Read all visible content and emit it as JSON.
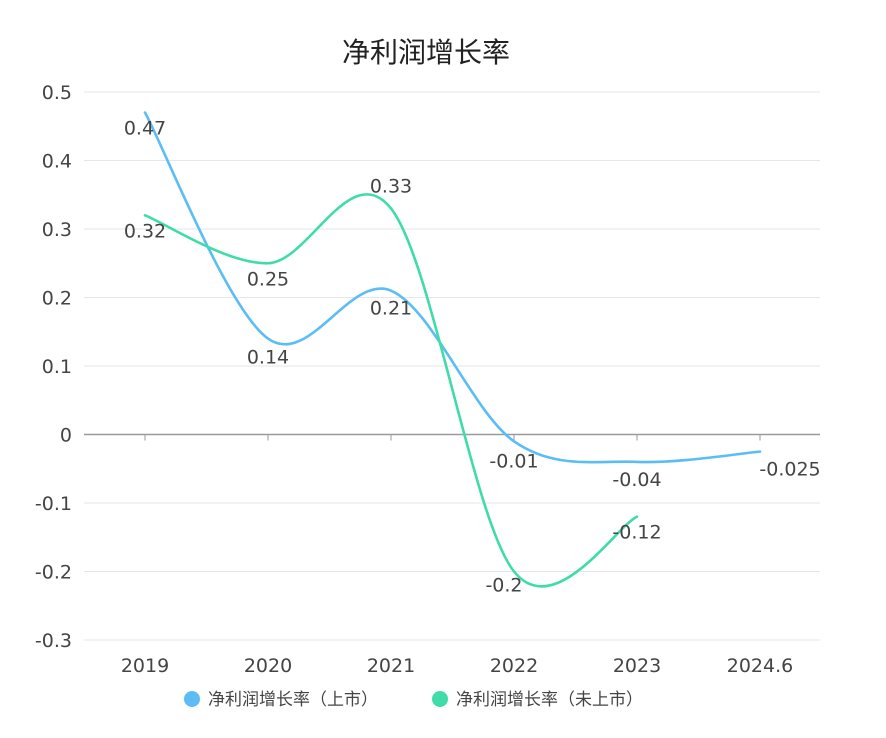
{
  "chart_data": {
    "type": "line",
    "title": "净利润增长率",
    "categories": [
      "2019",
      "2020",
      "2021",
      "2022",
      "2023",
      "2024.6"
    ],
    "ylim": [
      -0.3,
      0.5
    ],
    "yticks": [
      "0.5",
      "0.4",
      "0.3",
      "0.2",
      "0.1",
      "0",
      "-0.1",
      "-0.2",
      "-0.3"
    ],
    "grid": true,
    "legend_position": "bottom",
    "series": [
      {
        "name": "净利润增长率（上市）",
        "color": "#5bbdf5",
        "values": [
          0.47,
          0.14,
          0.21,
          -0.01,
          -0.04,
          -0.025
        ],
        "labels": [
          "0.47",
          "0.14",
          "0.21",
          "-0.01",
          "-0.04",
          "-0.025"
        ]
      },
      {
        "name": "净利润增长率（未上市）",
        "color": "#3fdcaa",
        "values": [
          0.32,
          0.25,
          0.33,
          -0.2,
          -0.12,
          null
        ],
        "labels": [
          "0.32",
          "0.25",
          "0.33",
          "-0.2",
          "-0.12",
          null
        ]
      }
    ]
  }
}
